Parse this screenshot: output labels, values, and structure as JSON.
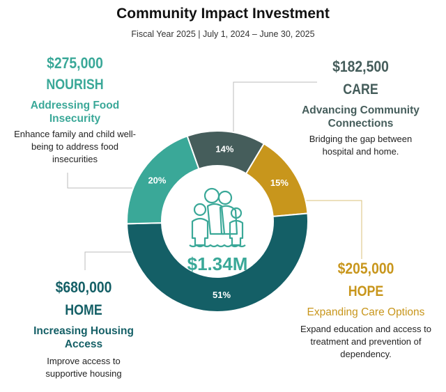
{
  "title": "Community Impact Investment",
  "subtitle": "Fiscal Year 2025 | July 1, 2024 – June 30, 2025",
  "center_total": "$1.34M",
  "center_icon": "family-icon",
  "chart_data": {
    "type": "pie",
    "donut": true,
    "categories": [
      "CARE",
      "HOPE",
      "HOME",
      "NOURISH"
    ],
    "values": [
      14,
      15,
      51,
      20
    ],
    "labels": [
      "14%",
      "15%",
      "51%",
      "20%"
    ],
    "colors": [
      "#455d5b",
      "#c8961c",
      "#145f66",
      "#3aa898"
    ]
  },
  "programs": {
    "nourish": {
      "amount": "$275,000",
      "name": "NOURISH",
      "heading": "Addressing Food Insecurity",
      "desc": "Enhance family and child well-being to address food insecurities",
      "color": "#3aa898"
    },
    "care": {
      "amount": "$182,500",
      "name": "CARE",
      "heading": "Advancing Community Connections",
      "desc": "Bridging the gap between hospital and home.",
      "color": "#455d5b"
    },
    "hope": {
      "amount": "$205,000",
      "name": "HOPE",
      "heading": "Expanding Care Options",
      "desc": "Expand education and access to treatment and prevention of dependency.",
      "color": "#c8961c"
    },
    "home": {
      "amount": "$680,000",
      "name": "HOME",
      "heading": "Increasing Housing Access",
      "desc": "Improve access to supportive housing",
      "color": "#145f66"
    }
  }
}
